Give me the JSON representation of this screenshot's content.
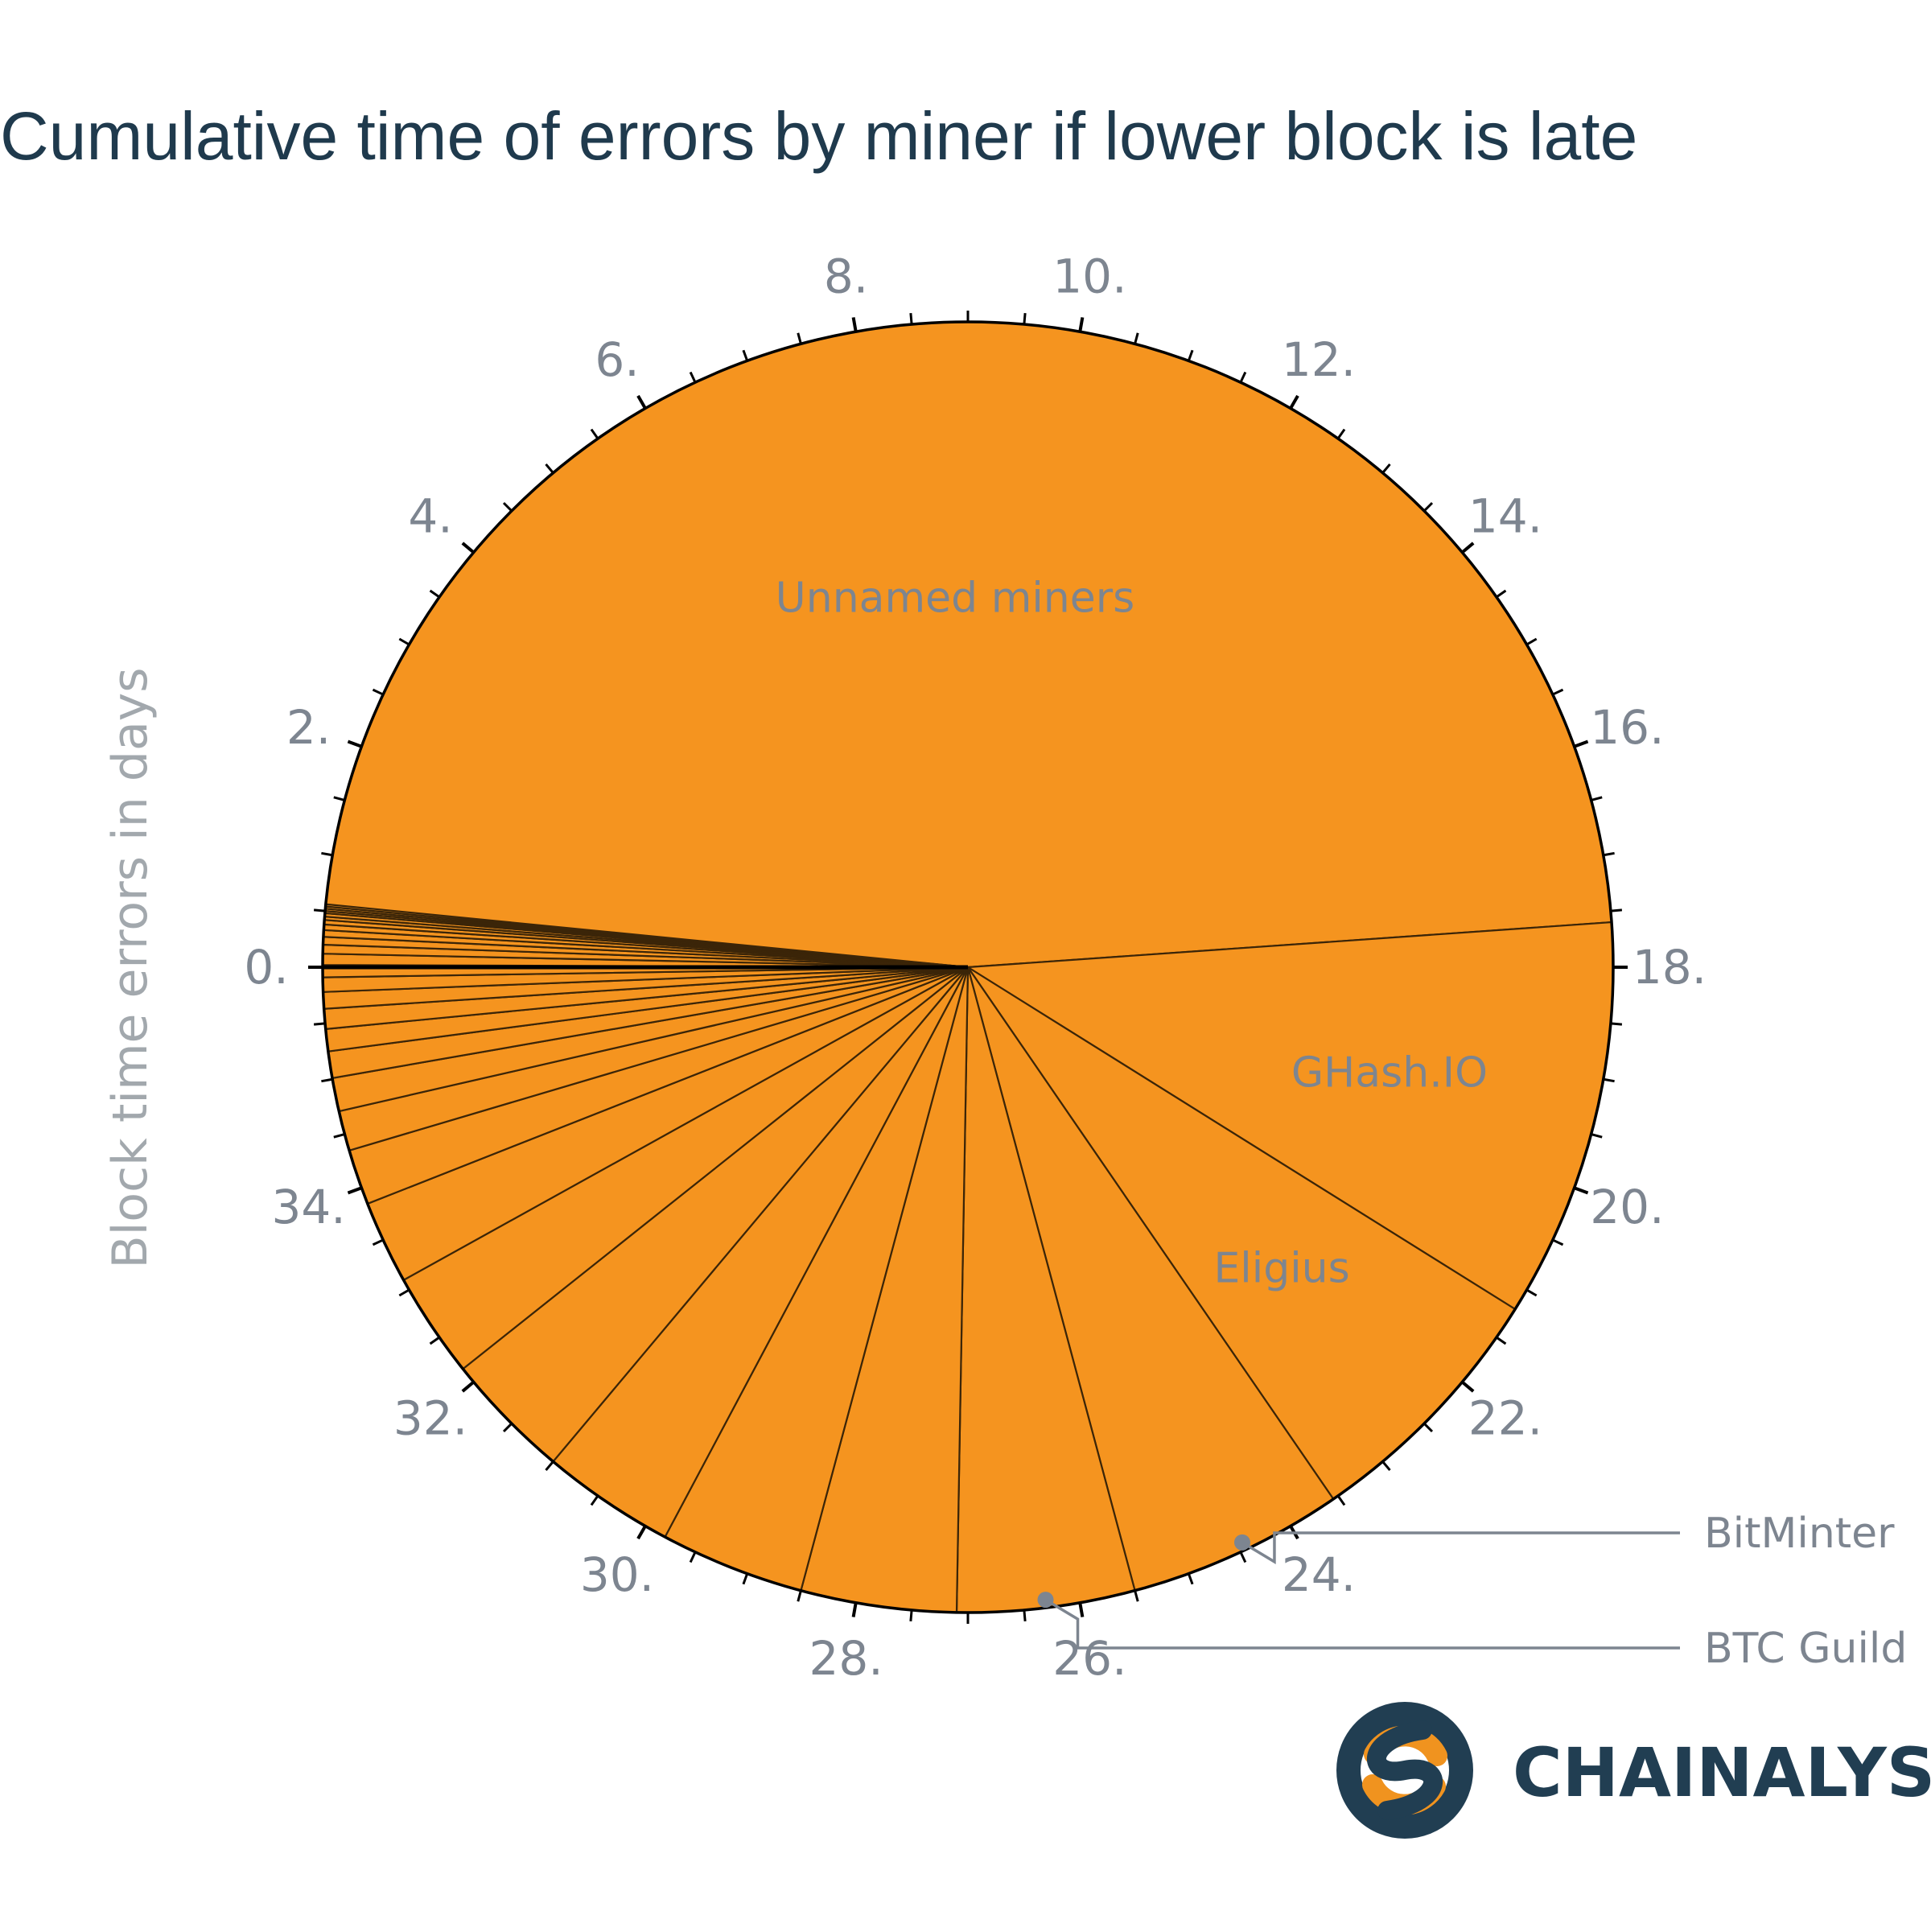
{
  "chart_data": {
    "type": "pie",
    "title": "Cumulative time of errors by miner if lower block is late",
    "ylabel": "Block time errors in days",
    "scale": {
      "min": 0,
      "max": 36,
      "major_step": 2,
      "minor_step": 0.5,
      "tick_labels": [
        "0.",
        "2.",
        "4.",
        "6.",
        "8.",
        "10.",
        "12.",
        "14.",
        "16.",
        "18.",
        "20.",
        "22.",
        "24.",
        "26.",
        "28.",
        "30.",
        "32.",
        "34."
      ]
    },
    "slice_color": "#f5941f",
    "edge_color": "#3b2508",
    "slices": [
      {
        "label": "Unnamed miners",
        "value": 17.6
      },
      {
        "label": "GHash.IO",
        "value": 3.6
      },
      {
        "label": "Eligius",
        "value": 2.35
      },
      {
        "label": "",
        "value": 1.95
      },
      {
        "label": "",
        "value": 1.6
      },
      {
        "label": "",
        "value": 1.4
      },
      {
        "label": "",
        "value": 1.3
      },
      {
        "label": "",
        "value": 1.2
      },
      {
        "label": "",
        "value": 1.15
      },
      {
        "label": "",
        "value": 0.95
      },
      {
        "label": "",
        "value": 0.75
      },
      {
        "label": "",
        "value": 0.5
      },
      {
        "label": "",
        "value": 0.36
      },
      {
        "label": "",
        "value": 0.3
      },
      {
        "label": "",
        "value": 0.24
      },
      {
        "label": "",
        "value": 0.2
      },
      {
        "label": "",
        "value": 0.18
      },
      {
        "label": "",
        "value": 0.15
      },
      {
        "label": "",
        "value": 0.13
      },
      {
        "label": "",
        "value": 0.11
      },
      {
        "label": "",
        "value": 0.1
      },
      {
        "label": "",
        "value": 0.08
      },
      {
        "label": "",
        "value": 0.07
      },
      {
        "label": "",
        "value": 0.06
      },
      {
        "label": "",
        "value": 0.05
      },
      {
        "label": "",
        "value": 0.04
      },
      {
        "label": "",
        "value": 0.03
      },
      {
        "label": "",
        "value": 0.03
      },
      {
        "label": "",
        "value": 0.02
      },
      {
        "label": "",
        "value": 0.02
      },
      {
        "label": "",
        "value": 0.02
      },
      {
        "label": "",
        "value": 0.02
      }
    ],
    "callouts": [
      {
        "label": "BitMinter",
        "at_value": 24.45
      },
      {
        "label": "BTC Guild",
        "at_value": 26.3
      }
    ]
  },
  "brand": {
    "name": "CHAINALYSIS",
    "colors": {
      "dark": "#213e52",
      "accent": "#f0931f"
    }
  }
}
